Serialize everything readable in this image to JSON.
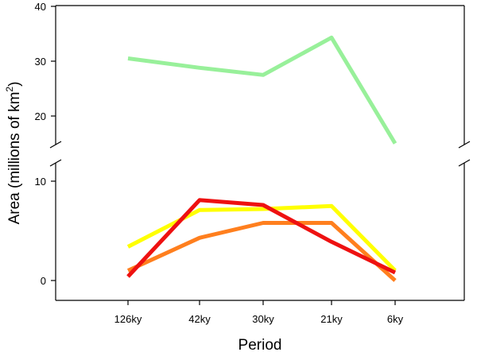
{
  "chart_data": {
    "type": "line",
    "title": "",
    "xlabel": "Period",
    "ylabel": "Area (millions of km",
    "ylabel_superscript": "2",
    "ylabel_suffix": ")",
    "categories": [
      "126ky",
      "42ky",
      "30ky",
      "21ky",
      "6ky"
    ],
    "axis_break": {
      "lower_range": [
        -2,
        12
      ],
      "upper_range": [
        15,
        40
      ]
    },
    "lower_ticks": [
      0,
      10
    ],
    "upper_ticks": [
      20,
      30,
      40
    ],
    "series": [
      {
        "name": "green",
        "color": "#98f09a",
        "values": [
          30.5,
          28.8,
          27.5,
          34.3,
          15.0
        ]
      },
      {
        "name": "yellow",
        "color": "#ffff00",
        "values": [
          3.4,
          7.1,
          7.2,
          7.5,
          1.0
        ]
      },
      {
        "name": "orange",
        "color": "#ff7f1e",
        "values": [
          1.0,
          4.3,
          5.8,
          5.8,
          0.0
        ]
      },
      {
        "name": "red",
        "color": "#ee1111",
        "values": [
          0.4,
          8.1,
          7.6,
          3.9,
          0.8
        ]
      }
    ]
  }
}
